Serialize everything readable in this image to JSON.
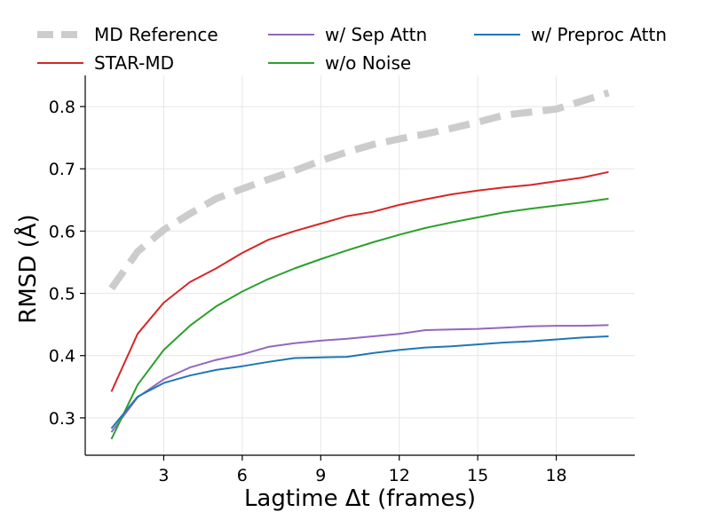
{
  "chart_data": {
    "type": "line",
    "title": "",
    "xlabel": "Lagtime Δt (frames)",
    "ylabel": "RMSD (Å)",
    "xlim": [
      0,
      21
    ],
    "ylim": [
      0.24,
      0.85
    ],
    "xticks": [
      3,
      6,
      9,
      12,
      15,
      18
    ],
    "yticks": [
      0.3,
      0.4,
      0.5,
      0.6,
      0.7,
      0.8
    ],
    "xtick_labels": [
      "3",
      "6",
      "9",
      "12",
      "15",
      "18"
    ],
    "ytick_labels": [
      "0.3",
      "0.4",
      "0.5",
      "0.6",
      "0.7",
      "0.8"
    ],
    "grid": true,
    "legend_position": "top",
    "x": [
      1,
      2,
      3,
      4,
      5,
      6,
      7,
      8,
      9,
      10,
      11,
      12,
      13,
      14,
      15,
      16,
      17,
      18,
      19,
      20
    ],
    "series": [
      {
        "name": "MD Reference",
        "color": "#cccccc",
        "style": "dashed",
        "values": [
          0.508,
          0.567,
          0.602,
          0.628,
          0.652,
          0.668,
          0.683,
          0.697,
          0.713,
          0.727,
          0.739,
          0.748,
          0.756,
          0.765,
          0.775,
          0.786,
          0.791,
          0.796,
          0.809,
          0.822
        ]
      },
      {
        "name": "STAR-MD",
        "color": "#d62728",
        "style": "solid",
        "values": [
          0.342,
          0.435,
          0.485,
          0.518,
          0.54,
          0.565,
          0.586,
          0.6,
          0.612,
          0.624,
          0.631,
          0.642,
          0.651,
          0.659,
          0.665,
          0.67,
          0.674,
          0.68,
          0.686,
          0.695
        ]
      },
      {
        "name": "w/ Sep Attn",
        "color": "#9467bd",
        "style": "solid",
        "values": [
          0.277,
          0.333,
          0.362,
          0.381,
          0.393,
          0.402,
          0.414,
          0.42,
          0.424,
          0.427,
          0.431,
          0.435,
          0.441,
          0.442,
          0.443,
          0.445,
          0.447,
          0.448,
          0.448,
          0.449
        ]
      },
      {
        "name": "w/o Noise",
        "color": "#2ca02c",
        "style": "solid",
        "values": [
          0.266,
          0.353,
          0.409,
          0.448,
          0.479,
          0.503,
          0.523,
          0.54,
          0.555,
          0.569,
          0.582,
          0.594,
          0.605,
          0.614,
          0.622,
          0.63,
          0.636,
          0.641,
          0.646,
          0.652
        ]
      },
      {
        "name": "w/ Preproc Attn",
        "color": "#1f77b4",
        "style": "solid",
        "values": [
          0.283,
          0.334,
          0.356,
          0.368,
          0.377,
          0.383,
          0.39,
          0.396,
          0.397,
          0.398,
          0.404,
          0.409,
          0.413,
          0.415,
          0.418,
          0.421,
          0.423,
          0.426,
          0.429,
          0.431
        ]
      }
    ]
  }
}
